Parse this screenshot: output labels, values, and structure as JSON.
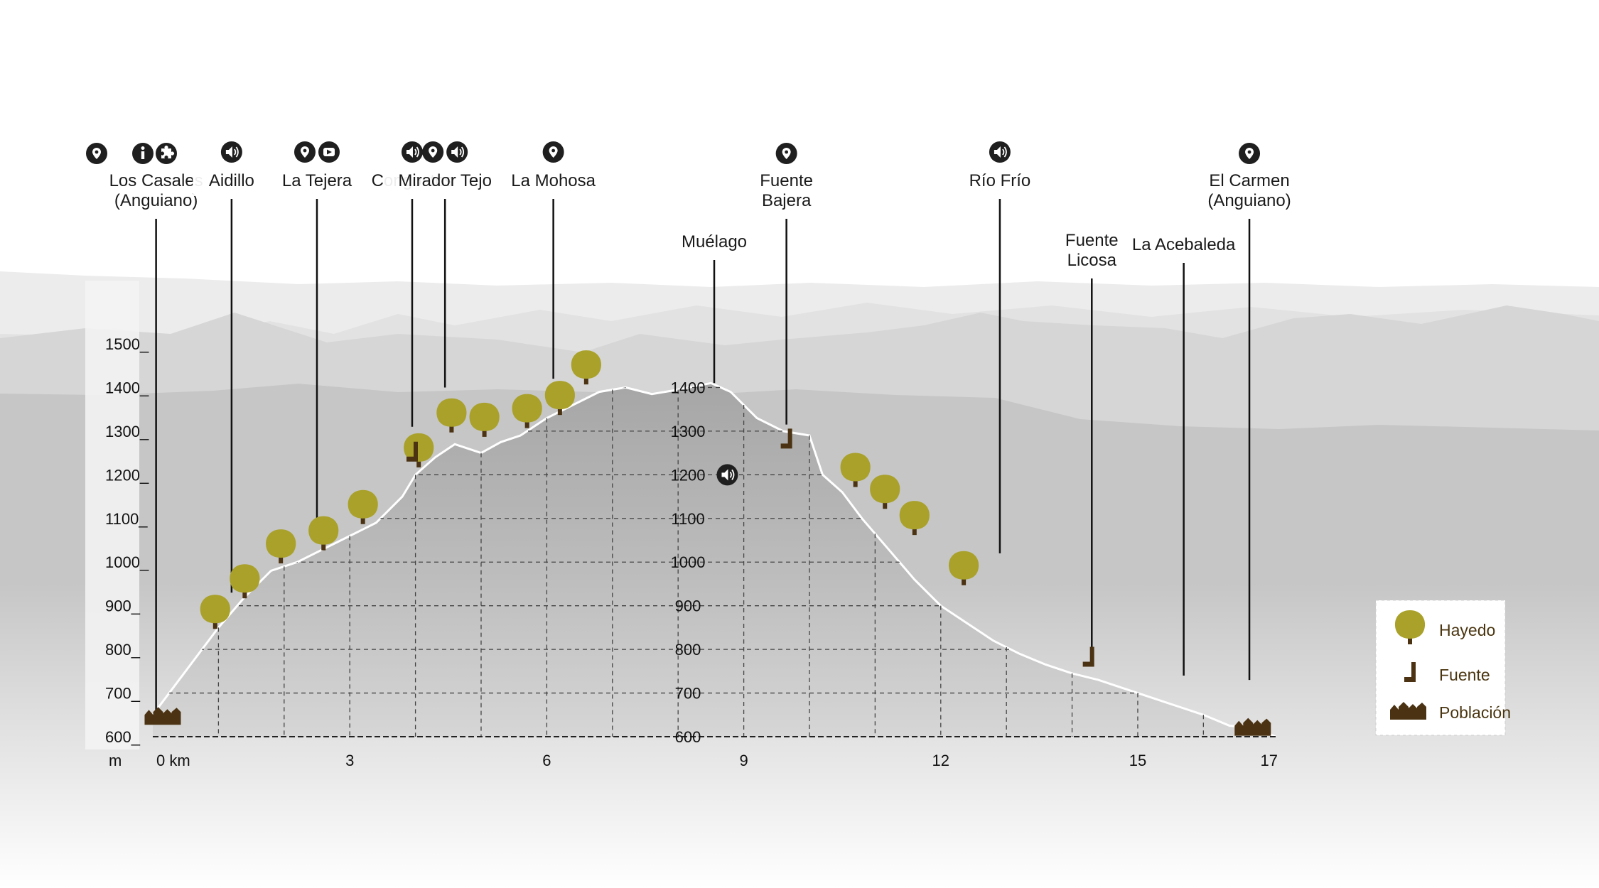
{
  "chart_data": {
    "type": "area",
    "title": "",
    "ylabel": "m",
    "xlabel": "km",
    "xlim": [
      0,
      17.1
    ],
    "ylim": [
      600,
      1500
    ],
    "x_ticks": [
      {
        "v": 0,
        "label": "0 km"
      },
      {
        "v": 3,
        "label": "3"
      },
      {
        "v": 6,
        "label": "6"
      },
      {
        "v": 9,
        "label": "9"
      },
      {
        "v": 12,
        "label": "12"
      },
      {
        "v": 15,
        "label": "15"
      },
      {
        "v": 17,
        "label": "17"
      }
    ],
    "y_ticks": [
      {
        "v": 600,
        "label": "600_"
      },
      {
        "v": 700,
        "label": "700_"
      },
      {
        "v": 800,
        "label": "800_"
      },
      {
        "v": 900,
        "label": "900_"
      },
      {
        "v": 1000,
        "label": "1000_"
      },
      {
        "v": 1100,
        "label": "1100_"
      },
      {
        "v": 1200,
        "label": "1200_"
      },
      {
        "v": 1300,
        "label": "1300_"
      },
      {
        "v": 1400,
        "label": "1400_"
      },
      {
        "v": 1500,
        "label": "1500_"
      }
    ],
    "inner_labels": [
      {
        "v": 1400,
        "label": "1400"
      },
      {
        "v": 1300,
        "label": "1300"
      },
      {
        "v": 1200,
        "label": "1200"
      },
      {
        "v": 1100,
        "label": "1100"
      },
      {
        "v": 1000,
        "label": "1000"
      },
      {
        "v": 900,
        "label": "900"
      },
      {
        "v": 800,
        "label": "800"
      },
      {
        "v": 700,
        "label": "700"
      },
      {
        "v": 600,
        "label": "600"
      }
    ],
    "profile": {
      "x": [
        0,
        0.6,
        1.0,
        1.4,
        1.8,
        2.2,
        2.6,
        3.0,
        3.4,
        3.8,
        4.0,
        4.3,
        4.6,
        5.0,
        5.3,
        5.6,
        5.8,
        6.0,
        6.4,
        6.8,
        7.2,
        7.6,
        8.0,
        8.5,
        8.8,
        9.2,
        9.6,
        10.0,
        10.2,
        10.5,
        10.8,
        11.2,
        11.6,
        12.0,
        12.4,
        12.8,
        13.2,
        13.6,
        14.0,
        14.4,
        14.8,
        15.2,
        15.6,
        16.0,
        16.4,
        16.8,
        17.1
      ],
      "y": [
        650,
        770,
        850,
        920,
        980,
        1000,
        1030,
        1060,
        1090,
        1150,
        1200,
        1240,
        1270,
        1250,
        1275,
        1290,
        1310,
        1330,
        1360,
        1390,
        1400,
        1385,
        1395,
        1410,
        1390,
        1330,
        1300,
        1290,
        1200,
        1160,
        1100,
        1030,
        960,
        900,
        860,
        820,
        790,
        765,
        745,
        730,
        710,
        690,
        670,
        650,
        625,
        620,
        600
      ]
    },
    "waypoints": [
      {
        "name": "Los Casales (Anguiano)",
        "lines": [
          "Los Casales",
          "(Anguiano)"
        ],
        "x": 0.05,
        "line_to": 650,
        "icons": [
          "pin-icon",
          "info-icon",
          "puzzle-icon"
        ]
      },
      {
        "name": "Aidillo",
        "lines": [
          "Aidillo"
        ],
        "x": 1.2,
        "line_to": 930,
        "icons": [
          "audio-icon"
        ]
      },
      {
        "name": "La Tejera",
        "lines": [
          "La Tejera"
        ],
        "x": 2.5,
        "line_to": 1060,
        "icons": [
          "pin-icon",
          "video-icon"
        ]
      },
      {
        "name": "Congostos",
        "lines": [
          "Congostos"
        ],
        "x": 3.95,
        "line_to": 1310,
        "icons": [
          "audio-icon"
        ]
      },
      {
        "name": "Mirador Tejo",
        "lines": [
          "Mirador Tejo"
        ],
        "x": 4.45,
        "line_to": 1400,
        "icons": [
          "pin-icon",
          "audio-icon"
        ]
      },
      {
        "name": "La Mohosa",
        "lines": [
          "La Mohosa"
        ],
        "x": 6.1,
        "line_to": 1420,
        "icons": [
          "pin-icon"
        ]
      },
      {
        "name": "Muélago",
        "lines": [
          "Muélago"
        ],
        "x": 8.55,
        "line_to": 1410,
        "icons": []
      },
      {
        "name": "Fuente Bajera",
        "lines": [
          "Fuente",
          "Bajera"
        ],
        "x": 9.65,
        "line_to": 1315,
        "icons": [
          "pin-icon"
        ]
      },
      {
        "name": "Río Frío",
        "lines": [
          "Río Frío"
        ],
        "x": 12.9,
        "line_to": 1020,
        "icons": [
          "audio-icon"
        ]
      },
      {
        "name": "Fuente Licosa",
        "lines": [
          "Fuente",
          "Licosa"
        ],
        "x": 14.3,
        "line_to": 800,
        "icons": []
      },
      {
        "name": "La Acebaleda",
        "lines": [
          "La Acebaleda"
        ],
        "x": 15.7,
        "line_to": 740,
        "icons": []
      },
      {
        "name": "El Carmen (Anguiano)",
        "lines": [
          "El Carmen",
          "(Anguiano)"
        ],
        "x": 16.7,
        "line_to": 730,
        "icons": [
          "pin-icon"
        ]
      }
    ],
    "markers": {
      "hayedo": [
        {
          "x": 0.95,
          "y": 860
        },
        {
          "x": 1.4,
          "y": 930
        },
        {
          "x": 1.95,
          "y": 1010
        },
        {
          "x": 2.6,
          "y": 1040
        },
        {
          "x": 3.2,
          "y": 1100
        },
        {
          "x": 4.05,
          "y": 1230
        },
        {
          "x": 4.55,
          "y": 1310
        },
        {
          "x": 5.05,
          "y": 1300
        },
        {
          "x": 5.7,
          "y": 1320
        },
        {
          "x": 6.2,
          "y": 1350
        },
        {
          "x": 6.6,
          "y": 1420
        },
        {
          "x": 10.7,
          "y": 1185
        },
        {
          "x": 11.15,
          "y": 1135
        },
        {
          "x": 11.6,
          "y": 1075
        },
        {
          "x": 12.35,
          "y": 960
        }
      ],
      "fuente": [
        {
          "x": 3.95,
          "y": 1240
        },
        {
          "x": 9.65,
          "y": 1270
        },
        {
          "x": 14.25,
          "y": 770
        }
      ],
      "poblacion": [
        {
          "x": 0.2,
          "y": 650
        },
        {
          "x": 16.8,
          "y": 625
        }
      ],
      "audio": [
        {
          "x": 8.75,
          "y": 1200
        }
      ]
    },
    "legend": {
      "position": "bottom-right",
      "items": [
        {
          "key": "hayedo",
          "label": "Hayedo"
        },
        {
          "key": "fuente",
          "label": "Fuente"
        },
        {
          "key": "poblacion",
          "label": "Población"
        }
      ]
    },
    "colors": {
      "tree_crown": "#a9a12a",
      "tree_trunk": "#4a3212",
      "marker_brown": "#4a3212",
      "icon_dark": "#1f1f1f",
      "grid": "#444444",
      "profile_line": "#ffffff"
    }
  },
  "axis": {
    "y_unit": "m"
  }
}
